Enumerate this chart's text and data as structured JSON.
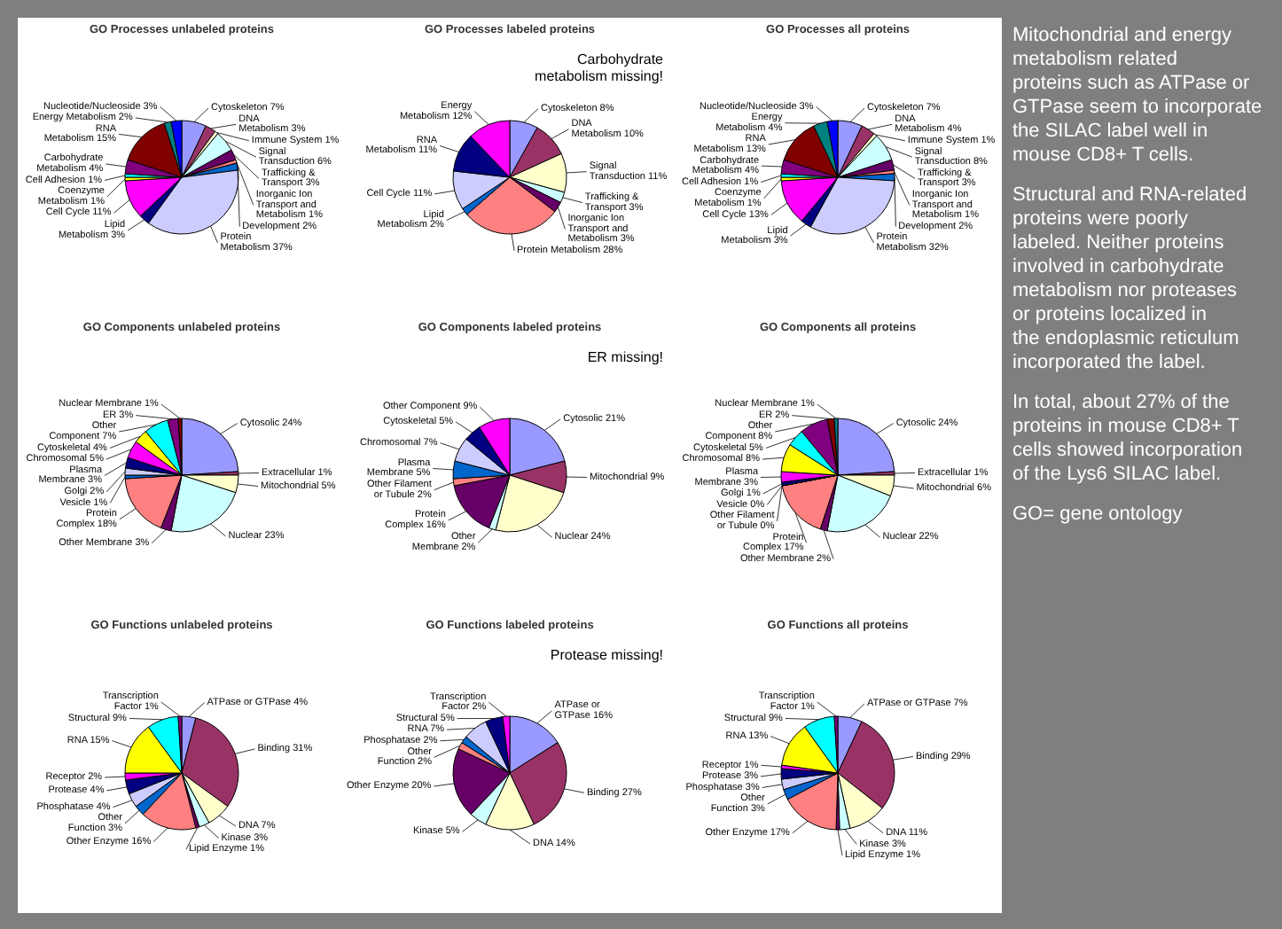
{
  "chart_data": [
    {
      "type": "pie",
      "title": "GO Processes unlabeled proteins",
      "categories": [
        "Cytoskeleton",
        "DNA Metabolism",
        "Immune System",
        "Signal Transduction",
        "Trafficking & Transport",
        "Inorganic Ion Transport and Metabolism",
        "Development",
        "Protein Metabolism",
        "Lipid Metabolism",
        "Cell Cycle",
        "Coenzyme Metabolism",
        "Cell Adhesion",
        "Carbohydrate Metabolism",
        "RNA Metabolism",
        "Energy Metabolism",
        "Nucleotide/Nucleoside"
      ],
      "values": [
        7,
        3,
        1,
        6,
        3,
        1,
        2,
        37,
        3,
        11,
        1,
        1,
        4,
        15,
        2,
        3
      ],
      "value_labels": [
        "7%",
        "3%",
        "1%",
        "6%",
        "3%",
        "1%",
        "2%",
        "37%",
        "3%",
        "11%",
        "1%",
        "1%",
        "4%",
        "15%",
        "2%",
        "3%"
      ],
      "colors": [
        "#9999ff",
        "#993366",
        "#ffffcc",
        "#ccffff",
        "#660066",
        "#ff8080",
        "#0066cc",
        "#ccccff",
        "#000080",
        "#ff00ff",
        "#ffff00",
        "#00ffff",
        "#800080",
        "#800000",
        "#008080",
        "#0000ff"
      ]
    },
    {
      "type": "pie",
      "title": "GO Processes labeled proteins",
      "categories": [
        "Cytoskeleton",
        "DNA Metabolism",
        "Signal Transduction",
        "Trafficking & Transport",
        "Inorganic Ion Transport and Metabolism",
        "Protein Metabolism",
        "Lipid Metabolism",
        "Cell Cycle",
        "RNA Metabolism",
        "Energy Metabolism"
      ],
      "values": [
        8,
        10,
        11,
        3,
        3,
        28,
        2,
        11,
        11,
        12
      ],
      "value_labels": [
        "8%",
        "10%",
        "11%",
        "3%",
        "3%",
        "28%",
        "2%",
        "11%",
        "11%",
        "12%"
      ],
      "colors": [
        "#9999ff",
        "#993366",
        "#ffffcc",
        "#ccffff",
        "#660066",
        "#ff8080",
        "#0066cc",
        "#ccccff",
        "#000080",
        "#ff00ff"
      ],
      "annotations": [
        "Carbohydrate metabolism missing!"
      ]
    },
    {
      "type": "pie",
      "title": "GO Processes all proteins",
      "categories": [
        "Cytoskeleton",
        "DNA Metabolism",
        "Immune System",
        "Signal Transduction",
        "Trafficking & Transport",
        "Inorganic Ion Transport and Metabolism",
        "Development",
        "Protein Metabolism",
        "Lipid Metabolism",
        "Cell Cycle",
        "Coenzyme Metabolism",
        "Cell Adhesion",
        "Carbohydrate Metabolism",
        "RNA Metabolism",
        "Energy Metabolism",
        "Nucleotide/Nucleoside"
      ],
      "values": [
        7,
        4,
        1,
        8,
        3,
        1,
        2,
        32,
        3,
        13,
        1,
        1,
        4,
        13,
        4,
        3
      ],
      "value_labels": [
        "7%",
        "4%",
        "1%",
        "8%",
        "3%",
        "1%",
        "2%",
        "32%",
        "3%",
        "13%",
        "1%",
        "1%",
        "4%",
        "13%",
        "4%",
        "3%"
      ],
      "colors": [
        "#9999ff",
        "#993366",
        "#ffffcc",
        "#ccffff",
        "#660066",
        "#ff8080",
        "#0066cc",
        "#ccccff",
        "#000080",
        "#ff00ff",
        "#ffff00",
        "#00ffff",
        "#800080",
        "#800000",
        "#008080",
        "#0000ff"
      ]
    },
    {
      "type": "pie",
      "title": "GO Components unlabeled proteins",
      "categories": [
        "Cytosolic",
        "Extracellular",
        "Mitochondrial",
        "Nuclear",
        "Other Membrane",
        "Protein Complex",
        "Vesicle",
        "Golgi",
        "Plasma Membrane",
        "Chromosomal",
        "Cytoskeletal",
        "Other Component",
        "ER",
        "Nuclear Membrane"
      ],
      "values": [
        24,
        1,
        5,
        23,
        3,
        18,
        1,
        2,
        3,
        5,
        4,
        7,
        3,
        1
      ],
      "value_labels": [
        "24%",
        "1%",
        "5%",
        "23%",
        "3%",
        "18%",
        "1%",
        "2%",
        "3%",
        "5%",
        "4%",
        "7%",
        "3%",
        "1%"
      ],
      "colors": [
        "#9999ff",
        "#993366",
        "#ffffcc",
        "#ccffff",
        "#660066",
        "#ff8080",
        "#0066cc",
        "#ccccff",
        "#000080",
        "#ff00ff",
        "#ffff00",
        "#00ffff",
        "#800080",
        "#800000"
      ]
    },
    {
      "type": "pie",
      "title": "GO Components labeled proteins",
      "categories": [
        "Cytosolic",
        "Mitochondrial",
        "Nuclear",
        "Other Membrane",
        "Protein Complex",
        "Other Filament or Tubule",
        "Plasma Membrane",
        "Chromosomal",
        "Cytoskeletal",
        "Other Component"
      ],
      "values": [
        21,
        9,
        24,
        2,
        16,
        2,
        5,
        7,
        5,
        9
      ],
      "value_labels": [
        "21%",
        "9%",
        "24%",
        "2%",
        "16%",
        "2%",
        "5%",
        "7%",
        "5%",
        "9%"
      ],
      "colors": [
        "#9999ff",
        "#993366",
        "#ffffcc",
        "#ccffff",
        "#660066",
        "#ff8080",
        "#0066cc",
        "#ccccff",
        "#000080",
        "#ff00ff"
      ],
      "annotations": [
        "ER missing!"
      ]
    },
    {
      "type": "pie",
      "title": "GO Components all proteins",
      "categories": [
        "Cytosolic",
        "Extracellular",
        "Mitochondrial",
        "Nuclear",
        "Other Membrane",
        "Protein Complex",
        "Vesicle",
        "Other Filament or Tubule",
        "Golgi",
        "Plasma Membrane",
        "Chromosomal",
        "Cytoskeletal",
        "Other Component",
        "ER",
        "Nuclear Membrane"
      ],
      "values": [
        24,
        1,
        6,
        22,
        2,
        17,
        0,
        0,
        1,
        3,
        8,
        5,
        8,
        2,
        1
      ],
      "value_labels": [
        "24%",
        "1%",
        "6%",
        "22%",
        "2%",
        "17%",
        "0%",
        "0%",
        "1%",
        "3%",
        "8%",
        "5%",
        "8%",
        "2%",
        "1%"
      ],
      "colors": [
        "#9999ff",
        "#993366",
        "#ffffcc",
        "#ccffff",
        "#660066",
        "#ff8080",
        "#0066cc",
        "#ccccff",
        "#000080",
        "#ff00ff",
        "#ffff00",
        "#00ffff",
        "#800080",
        "#800000",
        "#008080"
      ]
    },
    {
      "type": "pie",
      "title": "GO Functions unlabeled proteins",
      "categories": [
        "ATPase or GTPase",
        "Binding",
        "DNA",
        "Kinase",
        "Lipid Enzyme",
        "Other Enzyme",
        "Other Function",
        "Phosphatase",
        "Protease",
        "Receptor",
        "RNA",
        "Structural",
        "Transcription Factor"
      ],
      "values": [
        4,
        31,
        7,
        3,
        1,
        16,
        3,
        4,
        4,
        2,
        15,
        9,
        1
      ],
      "value_labels": [
        "4%",
        "31%",
        "7%",
        "3%",
        "1%",
        "16%",
        "3%",
        "4%",
        "4%",
        "2%",
        "15%",
        "9%",
        "1%"
      ],
      "colors": [
        "#9999ff",
        "#993366",
        "#ffffcc",
        "#ccffff",
        "#660066",
        "#ff8080",
        "#0066cc",
        "#ccccff",
        "#000080",
        "#ff00ff",
        "#ffff00",
        "#00ffff",
        "#800080"
      ]
    },
    {
      "type": "pie",
      "title": "GO Functions labeled proteins",
      "categories": [
        "ATPase or GTPase",
        "Binding",
        "DNA",
        "Kinase",
        "Other Enzyme",
        "Other Function",
        "Phosphatase",
        "RNA",
        "Structural",
        "Transcription Factor"
      ],
      "values": [
        16,
        27,
        14,
        5,
        20,
        2,
        2,
        7,
        5,
        2
      ],
      "value_labels": [
        "16%",
        "27%",
        "14%",
        "5%",
        "20%",
        "2%",
        "2%",
        "7%",
        "5%",
        "2%"
      ],
      "colors": [
        "#9999ff",
        "#993366",
        "#ffffcc",
        "#ccffff",
        "#660066",
        "#ff8080",
        "#0066cc",
        "#ccccff",
        "#000080",
        "#ff00ff"
      ],
      "annotations": [
        "Protease missing!"
      ]
    },
    {
      "type": "pie",
      "title": "GO Functions all proteins",
      "categories": [
        "ATPase or GTPase",
        "Binding",
        "DNA",
        "Kinase",
        "Lipid Enzyme",
        "Other Enzyme",
        "Other Function",
        "Phosphatase",
        "Protease",
        "Receptor",
        "RNA",
        "Structural",
        "Transcription Factor"
      ],
      "values": [
        7,
        29,
        11,
        3,
        1,
        17,
        3,
        3,
        3,
        1,
        13,
        9,
        1
      ],
      "value_labels": [
        "7%",
        "29%",
        "11%",
        "3%",
        "1%",
        "17%",
        "3%",
        "3%",
        "3%",
        "1%",
        "13%",
        "9%",
        "1%"
      ],
      "colors": [
        "#9999ff",
        "#993366",
        "#ffffcc",
        "#ccffff",
        "#660066",
        "#ff8080",
        "#0066cc",
        "#ccccff",
        "#000080",
        "#ff00ff",
        "#ffff00",
        "#00ffff",
        "#800080"
      ]
    },
    {
      "type": "other",
      "annotations": [
        "Mitochondrial and energy metabolism related proteins such as ATPase or GTPase seem to incorporate the SILAC label well in mouse CD8+ T cells.",
        "Structural and RNA-related proteins were poorly labeled. Neither proteins involved in carbohydrate metabolism nor proteases or proteins localized in the endoplasmic reticulum incorporated the label.",
        "In total, about 27% of the proteins in mouse CD8+ T cells showed incorporation of the Lys6 SILAC label.",
        "GO= gene ontology"
      ]
    }
  ]
}
